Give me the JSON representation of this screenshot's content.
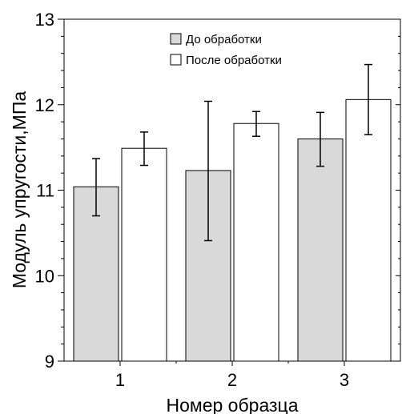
{
  "chart_data": {
    "type": "bar",
    "categories": [
      "1",
      "2",
      "3"
    ],
    "series": [
      {
        "name": "До обработки",
        "values": [
          11.04,
          11.23,
          11.6
        ],
        "err_low": [
          10.7,
          10.41,
          11.28
        ],
        "err_high": [
          11.37,
          12.04,
          11.91
        ],
        "color": "#d9d9d9"
      },
      {
        "name": "После обработки",
        "values": [
          11.49,
          11.78,
          12.06
        ],
        "err_low": [
          11.29,
          11.63,
          11.65
        ],
        "err_high": [
          11.68,
          11.92,
          12.47
        ],
        "color": "#ffffff"
      }
    ],
    "title": "",
    "xlabel": "Номер образца",
    "ylabel": "Модуль упругости,МПа",
    "ylim": [
      9,
      13
    ],
    "yticks": [
      "9",
      "10",
      "11",
      "12",
      "13"
    ],
    "grid": false,
    "legend_position": "top-center"
  }
}
